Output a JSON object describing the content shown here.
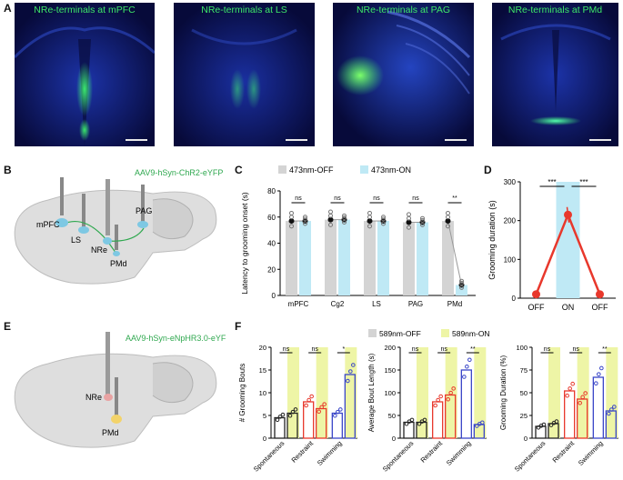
{
  "panels": {
    "A": "A",
    "B": "B",
    "C": "C",
    "D": "D",
    "E": "E",
    "F": "F"
  },
  "micrographs": [
    {
      "title": "NRe-terminals at mPFC"
    },
    {
      "title": "NRe-terminals at LS"
    },
    {
      "title": "NRe-terminals at PAG"
    },
    {
      "title": "NRe-terminals at PMd"
    }
  ],
  "schematicB": {
    "virus": "AAV9-hSyn-ChR2-eYFP",
    "regions": [
      "mPFC",
      "LS",
      "NRe",
      "PAG",
      "PMd"
    ]
  },
  "schematicE": {
    "virus": "AAV9-hSyn-eNpHR3.0-eYFP",
    "regions": [
      "NRe",
      "PMd"
    ]
  },
  "colors": {
    "off_gray": "#d4d4d4",
    "on_blue": "#bfe9f5",
    "on_yellow": "#eef5a6",
    "red": "#e8382c",
    "blue": "#3a46c8",
    "virus_green": "#2fa84f"
  },
  "chart_data": [
    {
      "id": "C",
      "type": "bar",
      "ylabel": "Latency to grooming onset (s)",
      "ylim": [
        0,
        80
      ],
      "yticks": [
        "0",
        "20",
        "40",
        "60",
        "80"
      ],
      "categories": [
        "mPFC",
        "Cg2",
        "LS",
        "PAG",
        "PMd"
      ],
      "legend": [
        "473nm-OFF",
        "473nm-ON"
      ],
      "series": [
        {
          "name": "473nm-OFF",
          "values": [
            57,
            58,
            57,
            56,
            57
          ]
        },
        {
          "name": "473nm-ON",
          "values": [
            57,
            58,
            57,
            56,
            8
          ]
        }
      ],
      "significance": [
        "ns",
        "ns",
        "ns",
        "ns",
        "**"
      ]
    },
    {
      "id": "D",
      "type": "line",
      "ylabel": "Grooming duration (s)",
      "ylim": [
        0,
        300
      ],
      "yticks": [
        "0",
        "100",
        "200",
        "300"
      ],
      "categories": [
        "OFF",
        "ON",
        "OFF"
      ],
      "values": [
        10,
        215,
        10
      ],
      "significance": [
        "***",
        "***"
      ]
    },
    {
      "id": "F1",
      "type": "bar",
      "ylabel": "# Grooming Bouts",
      "ylim": [
        0,
        20
      ],
      "yticks": [
        "0",
        "5",
        "10",
        "15",
        "20"
      ],
      "categories": [
        "Spontaneous",
        "Restraint",
        "Swimming"
      ],
      "legend": [
        "589nm-OFF",
        "589nm-ON"
      ],
      "series": [
        {
          "name": "589nm-OFF",
          "values": [
            4.5,
            8,
            5.5
          ]
        },
        {
          "name": "589nm-ON",
          "values": [
            5.5,
            6.5,
            14
          ]
        }
      ],
      "significance": [
        "ns",
        "ns",
        "*"
      ]
    },
    {
      "id": "F2",
      "type": "bar",
      "ylabel": "Average Bout Length (s)",
      "ylim": [
        0,
        200
      ],
      "yticks": [
        "0",
        "50",
        "100",
        "150",
        "200"
      ],
      "categories": [
        "Spontaneous",
        "Restraint",
        "Swimming"
      ],
      "series": [
        {
          "name": "589nm-OFF",
          "values": [
            35,
            80,
            150
          ]
        },
        {
          "name": "589nm-ON",
          "values": [
            35,
            95,
            30
          ]
        }
      ],
      "significance": [
        "ns",
        "ns",
        "**"
      ]
    },
    {
      "id": "F3",
      "type": "bar",
      "ylabel": "Grooming Duration (%)",
      "ylim": [
        0,
        100
      ],
      "yticks": [
        "0",
        "25",
        "50",
        "75",
        "100"
      ],
      "categories": [
        "Spontaneous",
        "Restraint",
        "Swimming"
      ],
      "series": [
        {
          "name": "589nm-OFF",
          "values": [
            13,
            52,
            67
          ]
        },
        {
          "name": "589nm-ON",
          "values": [
            16,
            43,
            30
          ]
        }
      ],
      "significance": [
        "ns",
        "ns",
        "**"
      ]
    }
  ]
}
